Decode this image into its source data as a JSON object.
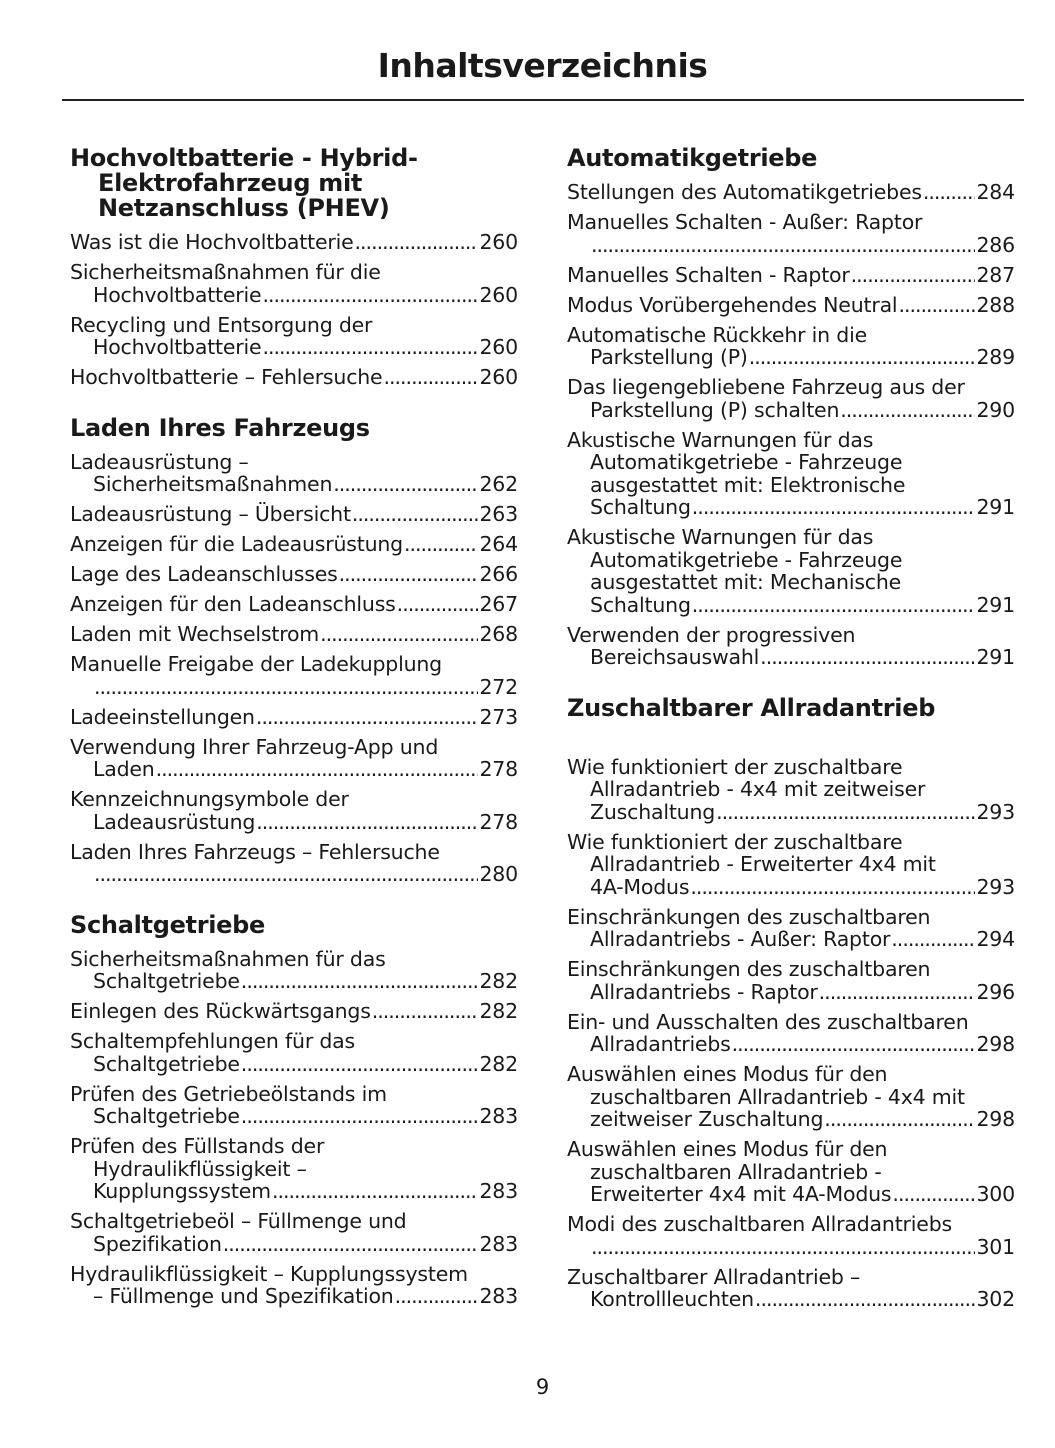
{
  "title": "Inhaltsverzeichnis",
  "page_number": "9",
  "columns": [
    [
      {
        "heading": [
          "Hochvoltbatterie - Hybrid-",
          "Elektrofahrzeug mit",
          "Netzanschluss (PHEV)"
        ],
        "entries": [
          {
            "lines": [
              "Was ist die Hochvoltbatterie"
            ],
            "page": "260"
          },
          {
            "lines": [
              "Sicherheitsmaßnahmen für die",
              "Hochvoltbatterie"
            ],
            "page": "260"
          },
          {
            "lines": [
              "Recycling und Entsorgung der",
              "Hochvoltbatterie"
            ],
            "page": "260"
          },
          {
            "lines": [
              "Hochvoltbatterie – Fehlersuche"
            ],
            "page": "260"
          }
        ]
      },
      {
        "heading": [
          "Laden Ihres Fahrzeugs"
        ],
        "entries": [
          {
            "lines": [
              "Ladeausrüstung –",
              "Sicherheitsmaßnahmen"
            ],
            "page": "262"
          },
          {
            "lines": [
              "Ladeausrüstung – Übersicht"
            ],
            "page": "263"
          },
          {
            "lines": [
              "Anzeigen für die Ladeausrüstung"
            ],
            "page": "264"
          },
          {
            "lines": [
              "Lage des Ladeanschlusses"
            ],
            "page": "266"
          },
          {
            "lines": [
              "Anzeigen für den Ladeanschluss"
            ],
            "page": "267"
          },
          {
            "lines": [
              "Laden mit Wechselstrom"
            ],
            "page": "268"
          },
          {
            "lines": [
              "Manuelle Freigabe der Ladekupplung",
              ""
            ],
            "page": "272"
          },
          {
            "lines": [
              "Ladeeinstellungen"
            ],
            "page": "273"
          },
          {
            "lines": [
              "Verwendung Ihrer Fahrzeug-App und",
              "Laden"
            ],
            "page": "278"
          },
          {
            "lines": [
              "Kennzeichnungsymbole der",
              "Ladeausrüstung"
            ],
            "page": "278"
          },
          {
            "lines": [
              "Laden Ihres Fahrzeugs – Fehlersuche",
              ""
            ],
            "page": "280"
          }
        ]
      },
      {
        "heading": [
          "Schaltgetriebe"
        ],
        "entries": [
          {
            "lines": [
              "Sicherheitsmaßnahmen für das",
              "Schaltgetriebe"
            ],
            "page": "282"
          },
          {
            "lines": [
              "Einlegen des Rückwärtsgangs"
            ],
            "page": "282"
          },
          {
            "lines": [
              "Schaltempfehlungen für das",
              "Schaltgetriebe"
            ],
            "page": "282"
          },
          {
            "lines": [
              "Prüfen des Getriebeölstands im",
              "Schaltgetriebe"
            ],
            "page": "283"
          },
          {
            "lines": [
              "Prüfen des Füllstands der",
              "Hydraulikflüssigkeit –",
              "Kupplungssystem"
            ],
            "page": "283"
          },
          {
            "lines": [
              "Schaltgetriebeöl – Füllmenge und",
              "Spezifikation"
            ],
            "page": "283"
          },
          {
            "lines": [
              "Hydraulikflüssigkeit – Kupplungssystem",
              "– Füllmenge und Spezifikation"
            ],
            "page": "283"
          }
        ]
      }
    ],
    [
      {
        "heading": [
          "Automatikgetriebe"
        ],
        "entries": [
          {
            "lines": [
              "Stellungen des Automatikgetriebes"
            ],
            "page": "284"
          },
          {
            "lines": [
              "Manuelles Schalten - Außer: Raptor",
              ""
            ],
            "page": "286"
          },
          {
            "lines": [
              "Manuelles Schalten - Raptor"
            ],
            "page": "287"
          },
          {
            "lines": [
              "Modus Vorübergehendes Neutral"
            ],
            "page": "288"
          },
          {
            "lines": [
              "Automatische Rückkehr in die",
              "Parkstellung (P)"
            ],
            "page": "289"
          },
          {
            "lines": [
              "Das liegengebliebene Fahrzeug aus der",
              "Parkstellung (P) schalten"
            ],
            "page": "290"
          },
          {
            "lines": [
              "Akustische Warnungen für das",
              "Automatikgetriebe - Fahrzeuge",
              "ausgestattet mit: Elektronische",
              "Schaltung"
            ],
            "page": "291"
          },
          {
            "lines": [
              "Akustische Warnungen für das",
              "Automatikgetriebe - Fahrzeuge",
              "ausgestattet mit: Mechanische",
              "Schaltung"
            ],
            "page": "291"
          },
          {
            "lines": [
              "Verwenden der progressiven",
              "Bereichsauswahl"
            ],
            "page": "291"
          }
        ]
      },
      {
        "heading": [
          "Zuschaltbarer Allradantrieb"
        ],
        "extra_gap": true,
        "entries": [
          {
            "lines": [
              "Wie funktioniert der zuschaltbare",
              "Allradantrieb - 4x4 mit zeitweiser",
              "Zuschaltung"
            ],
            "page": "293"
          },
          {
            "lines": [
              "Wie funktioniert der zuschaltbare",
              "Allradantrieb - Erweiterter 4x4 mit",
              "4A-Modus"
            ],
            "page": "293"
          },
          {
            "lines": [
              "Einschränkungen des zuschaltbaren",
              "Allradantriebs - Außer: Raptor"
            ],
            "page": "294"
          },
          {
            "lines": [
              "Einschränkungen des zuschaltbaren",
              "Allradantriebs - Raptor"
            ],
            "page": "296"
          },
          {
            "lines": [
              "Ein- und Ausschalten des zuschaltbaren",
              "Allradantriebs"
            ],
            "page": "298"
          },
          {
            "lines": [
              "Auswählen eines Modus für den",
              "zuschaltbaren Allradantrieb - 4x4 mit",
              "zeitweiser Zuschaltung"
            ],
            "page": "298"
          },
          {
            "lines": [
              "Auswählen eines Modus für den",
              "zuschaltbaren Allradantrieb -",
              "Erweiterter 4x4 mit 4A-Modus"
            ],
            "page": "300"
          },
          {
            "lines": [
              "Modi des zuschaltbaren Allradantriebs",
              ""
            ],
            "page": "301"
          },
          {
            "lines": [
              "Zuschaltbarer Allradantrieb –",
              "Kontrollleuchten"
            ],
            "page": "302"
          }
        ]
      }
    ]
  ]
}
